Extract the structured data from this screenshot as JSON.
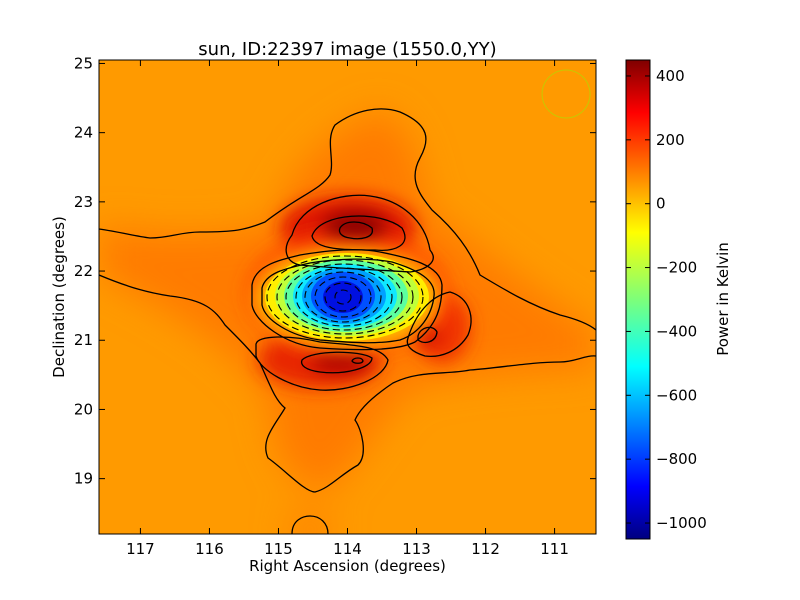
{
  "chart_data": {
    "type": "heatmap",
    "title": "sun, ID:22397 image (1550.0,YY)",
    "xlabel": "Right Ascension (degrees)",
    "ylabel": "Declination (degrees)",
    "xlim": [
      117.6,
      110.4
    ],
    "ylim": [
      18.2,
      25.05
    ],
    "xticks": [
      117,
      116,
      115,
      114,
      113,
      112,
      111
    ],
    "yticks": [
      19,
      20,
      21,
      22,
      23,
      24,
      25
    ],
    "colorbar": {
      "label": "Power in Kelvin",
      "range": [
        -1050,
        450
      ],
      "ticks": [
        400,
        200,
        0,
        -200,
        -400,
        -600,
        -800,
        -1000
      ],
      "colormap": "jet"
    },
    "background_level": 100,
    "features": [
      {
        "kind": "minimum",
        "ra": 113.95,
        "dec": 21.6,
        "value": -1050
      },
      {
        "kind": "maximum",
        "ra": 113.9,
        "dec": 22.65,
        "value": 420
      },
      {
        "kind": "maximum",
        "ra": 114.1,
        "dec": 20.72,
        "value": 330
      },
      {
        "kind": "maximum",
        "ra": 112.75,
        "dec": 21.1,
        "value": 280
      }
    ],
    "beam": {
      "ra": 110.8,
      "dec": 24.6
    },
    "grid": false
  }
}
